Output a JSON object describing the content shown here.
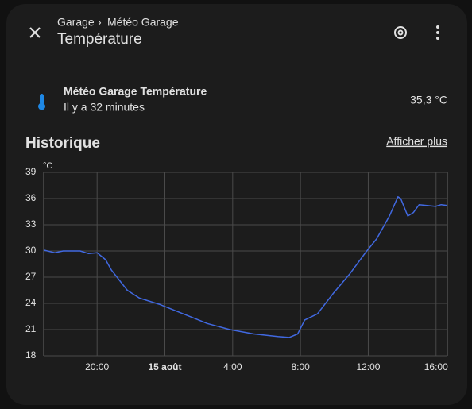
{
  "header": {
    "breadcrumb": [
      "Garage",
      "Météo Garage"
    ],
    "title": "Température"
  },
  "entity": {
    "name": "Météo Garage Température",
    "last_changed": "Il y a 32 minutes",
    "state": "35,3 °C"
  },
  "history": {
    "title": "Historique",
    "more_link": "Afficher plus"
  },
  "chart_data": {
    "type": "line",
    "ylabel": "°C",
    "color": "#4169e1",
    "grid": true,
    "x": [
      "16:51",
      "17:30",
      "18:00",
      "19:00",
      "19:30",
      "20:00",
      "20:30",
      "20:51",
      "21:47",
      "22:30",
      "23:40",
      "1:05",
      "2:30",
      "3:50",
      "5:15",
      "6:40",
      "7:20",
      "7:50",
      "8:15",
      "9:00",
      "9:55",
      "10:55",
      "11:50",
      "12:30",
      "13:15",
      "13:45",
      "13:55",
      "14:20",
      "14:40",
      "15:00",
      "15:58",
      "16:18",
      "16:40"
    ],
    "values": [
      30.1,
      29.8,
      30.0,
      30.0,
      29.7,
      29.8,
      29.0,
      27.8,
      25.5,
      24.6,
      23.9,
      22.8,
      21.7,
      21.0,
      20.5,
      20.2,
      20.1,
      20.5,
      22.1,
      22.8,
      25.1,
      27.4,
      29.8,
      31.4,
      34.0,
      36.2,
      36.0,
      34.0,
      34.4,
      35.3,
      35.1,
      35.3,
      35.2
    ],
    "xlim": [
      "16:51",
      "16:40"
    ],
    "xticks": [
      "20:00",
      {
        "value": "0:00",
        "label": "15 août"
      },
      "4:00",
      "8:00",
      "12:00",
      "16:00"
    ],
    "ylim": [
      18,
      39
    ],
    "yticks": [
      18,
      21,
      24,
      27,
      30,
      33,
      36,
      39
    ]
  }
}
